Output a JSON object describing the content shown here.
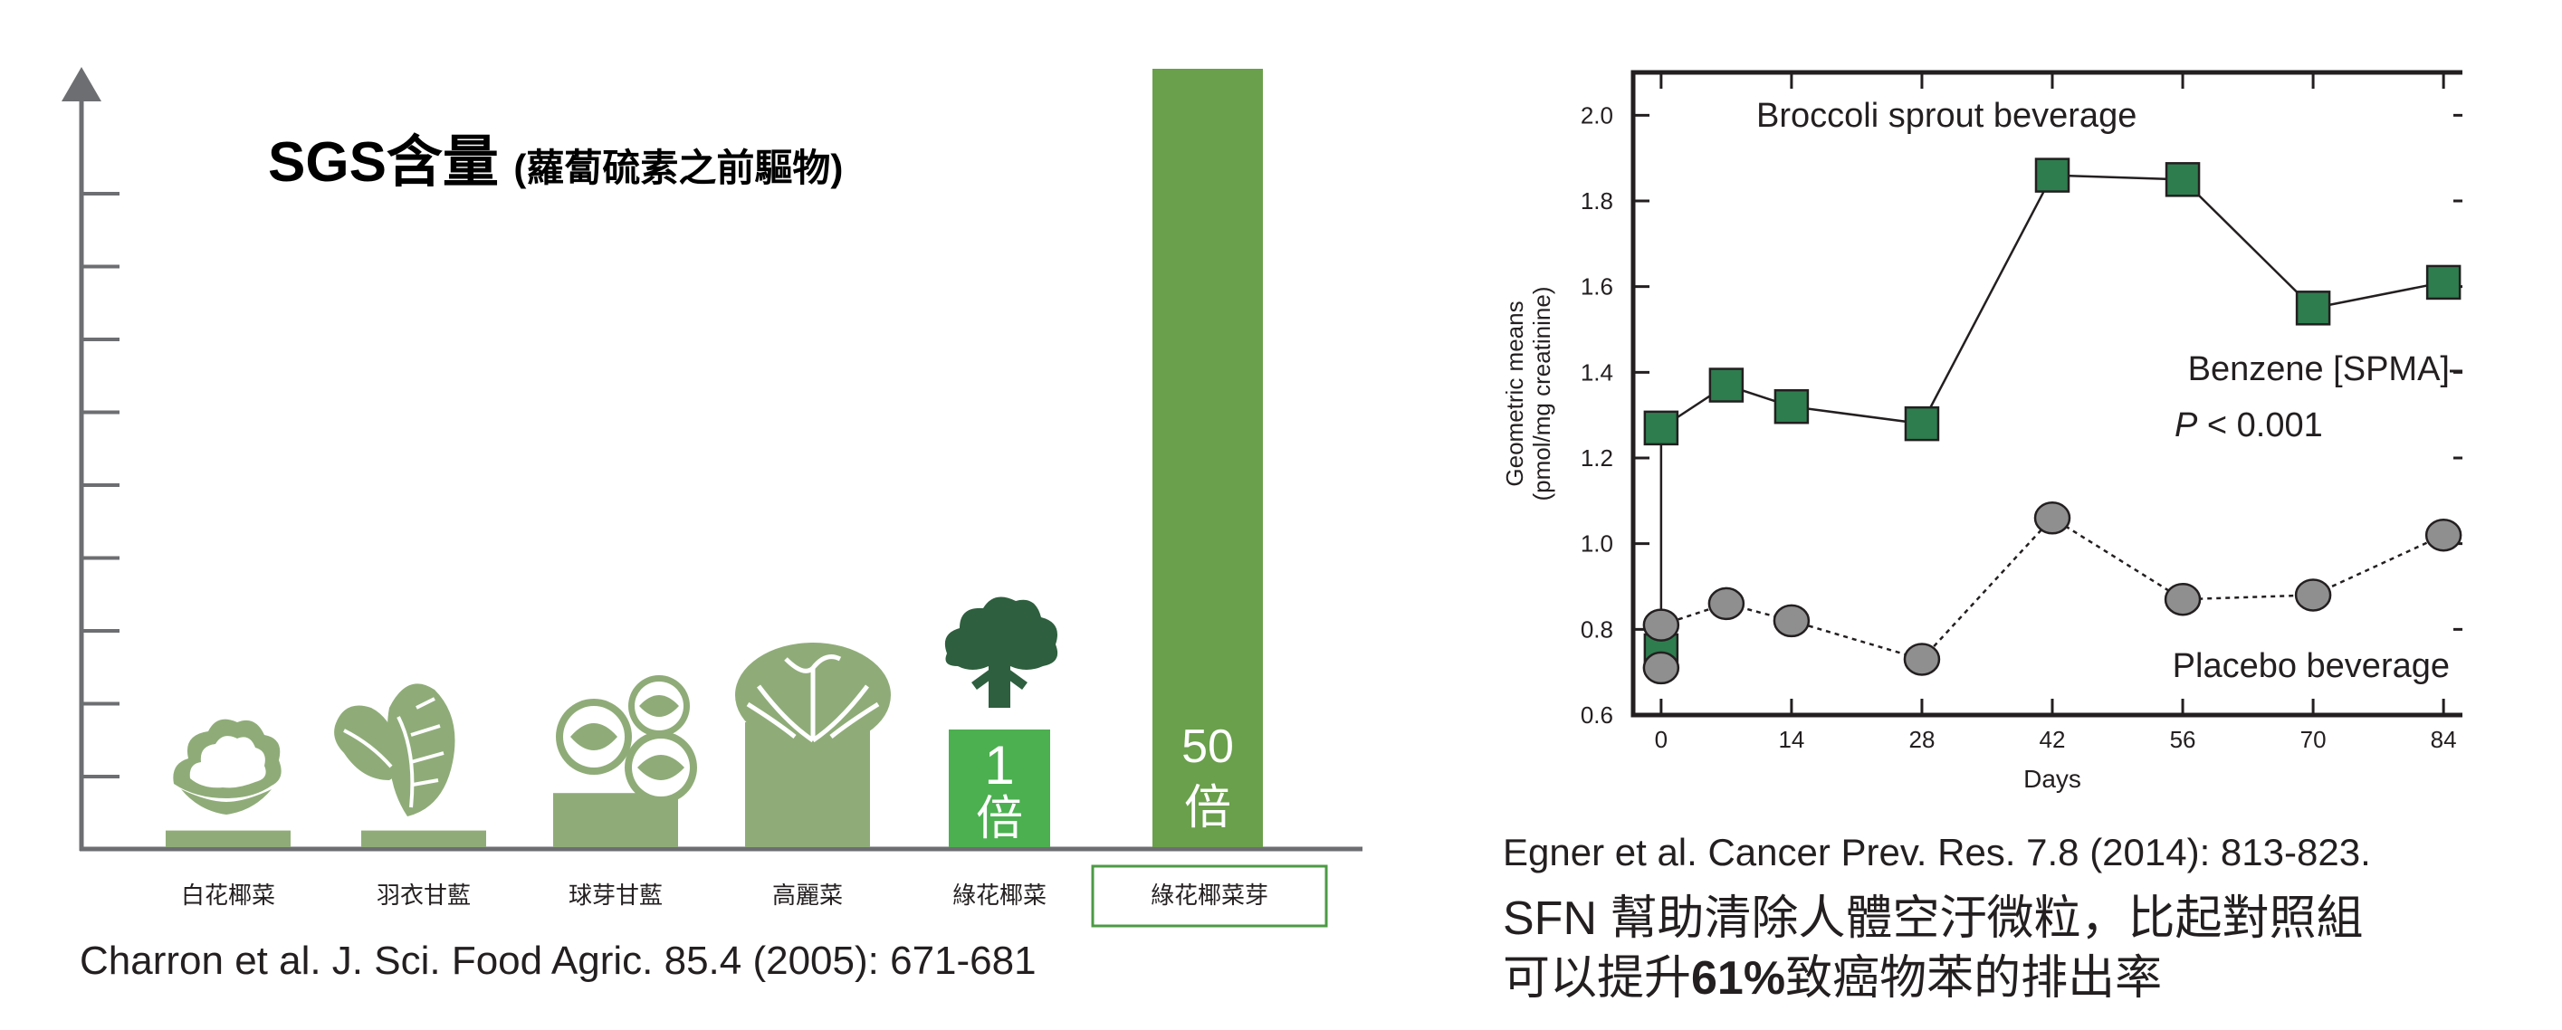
{
  "colors": {
    "light_green": "#8fac78",
    "mid_green": "#4caf50",
    "dark_green": "#6a9f4c",
    "box_green": "#2e7d4f",
    "grey": "#8f8f8f",
    "text": "#231f20"
  },
  "left": {
    "title_main": "SGS含量",
    "title_sub": "(蘿蔔硫素之前驅物)",
    "citation": "Charron et al.  J. Sci. Food Agric. 85.4 (2005): 671-681",
    "icons": [
      "cauliflower-icon",
      "kale-icon",
      "brussels-sprouts-icon",
      "cabbage-icon",
      "broccoli-icon"
    ]
  },
  "right": {
    "citation_line": "Egner et al. Cancer Prev. Res. 7.8 (2014): 813-823.",
    "summary_line1": "SFN 幫助清除人體空汙微粒，比起對照組",
    "summary_line2_a": "可以提升",
    "summary_line2_b": "61%",
    "summary_line2_c": "致癌物苯的排出率"
  },
  "chart_data": [
    {
      "type": "bar",
      "title": "SGS含量 (蘿蔔硫素之前驅物)",
      "categories": [
        "白花椰菜",
        "羽衣甘藍",
        "球芽甘藍",
        "高麗菜",
        "綠花椰菜",
        "綠花椰菜芽"
      ],
      "values": [
        0.2,
        0.2,
        0.65,
        1.5,
        1,
        50
      ],
      "bar_labels": [
        "",
        "",
        "",
        "",
        "1\n倍",
        "50\n倍"
      ],
      "bar_label_lines": [
        [
          "",
          ""
        ],
        [
          "",
          ""
        ],
        [
          "",
          ""
        ],
        [
          "",
          ""
        ],
        [
          "1",
          "倍"
        ],
        [
          "50",
          "倍"
        ]
      ],
      "highlight_category": "綠花椰菜芽",
      "y_axis_ticks": 9
    },
    {
      "type": "line",
      "text_inside": "Broccoli sprout beverage",
      "xlabel": "Days",
      "ylabel_line1": "Geometric means",
      "ylabel_line2": "(pmol/mg creatinine)",
      "xlim": [
        -3,
        87
      ],
      "ylim": [
        0.6,
        2.1
      ],
      "x_ticks": [
        0,
        14,
        28,
        42,
        56,
        70,
        84
      ],
      "y_ticks": [
        0.6,
        0.8,
        1.0,
        1.2,
        1.4,
        1.6,
        1.8,
        2.0
      ],
      "y_tick_labels": [
        "0.6",
        "0.8",
        "1.0",
        "1.2",
        "1.4",
        "1.6",
        "1.8",
        "2.0"
      ],
      "annotations": [
        "Benzene [SPMA]",
        "P",
        " < 0.001"
      ],
      "series": [
        {
          "name": "Broccoli sprout beverage",
          "marker": "square",
          "line": "solid",
          "x": [
            0,
            0,
            7,
            14,
            28,
            42,
            56,
            70,
            84
          ],
          "y": [
            0.75,
            1.27,
            1.37,
            1.32,
            1.28,
            1.86,
            1.85,
            1.55,
            1.61
          ]
        },
        {
          "name": "Placebo beverage",
          "marker": "circle",
          "line": "dotted",
          "x": [
            0,
            0,
            7,
            14,
            28,
            42,
            56,
            70,
            84
          ],
          "y": [
            0.71,
            0.81,
            0.86,
            0.82,
            0.73,
            1.06,
            0.87,
            0.88,
            1.02
          ]
        }
      ]
    }
  ]
}
